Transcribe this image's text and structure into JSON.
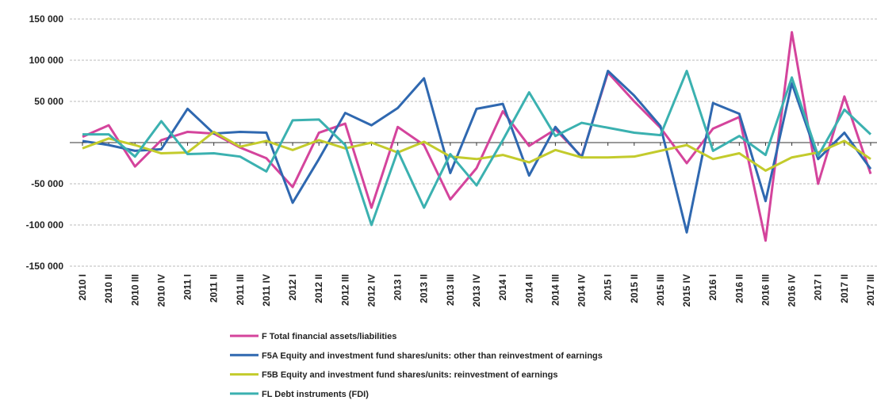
{
  "chart_data": {
    "type": "line",
    "categories": [
      "2010 I",
      "2010 II",
      "2010 III",
      "2010 IV",
      "2011 I",
      "2011 II",
      "2011 III",
      "2011 IV",
      "2012 I",
      "2012 II",
      "2012 III",
      "2012 IV",
      "2013 I",
      "2013 II",
      "2013 III",
      "2013 IV",
      "2014 I",
      "2014 II",
      "2014 III",
      "2014 IV",
      "2015 I",
      "2015 II",
      "2015 III",
      "2015 IV",
      "2016 I",
      "2016 II",
      "2016 III",
      "2016 IV",
      "2017 I",
      "2017 II",
      "2017 III"
    ],
    "series": [
      {
        "name": "F Total financial assets/liabilities",
        "color": "#d4449c",
        "values": [
          7000,
          21000,
          -29000,
          3000,
          13000,
          11000,
          -6000,
          -19000,
          -54000,
          12000,
          23000,
          -79000,
          19000,
          -3000,
          -69000,
          -31000,
          38000,
          -4000,
          16000,
          -17000,
          85000,
          50000,
          18000,
          -25000,
          17000,
          31000,
          -119000,
          134000,
          -50000,
          56000,
          -38000
        ]
      },
      {
        "name": "F5A Equity and investment fund shares/units: other than reinvestment of earnings",
        "color": "#2f68b0",
        "values": [
          2000,
          -3000,
          -10000,
          -8000,
          41000,
          11000,
          13000,
          12000,
          -73000,
          -20000,
          36000,
          21000,
          42000,
          78000,
          -37000,
          41000,
          47000,
          -40000,
          19000,
          -18000,
          87000,
          57000,
          20000,
          -109000,
          48000,
          35000,
          -71000,
          72000,
          -20000,
          12000,
          -32000
        ]
      },
      {
        "name": "F5B Equity and investment fund shares/units: reinvestment of earnings",
        "color": "#c3cb2c",
        "values": [
          -7000,
          5000,
          -3000,
          -13000,
          -12000,
          13000,
          -5000,
          2000,
          -9000,
          3000,
          -7000,
          0,
          -12000,
          1000,
          -17000,
          -20000,
          -15000,
          -24000,
          -9000,
          -18000,
          -18000,
          -17000,
          -10000,
          -3000,
          -20000,
          -13000,
          -34000,
          -18000,
          -12000,
          2000,
          -20000
        ]
      },
      {
        "name": "FL Debt instruments (FDI)",
        "color": "#3bb1b0",
        "values": [
          10000,
          10000,
          -17000,
          26000,
          -14000,
          -13000,
          -17000,
          -35000,
          27000,
          28000,
          -3000,
          -100000,
          -10000,
          -79000,
          -14000,
          -52000,
          3000,
          61000,
          8000,
          24000,
          18000,
          12000,
          9000,
          87000,
          -10000,
          8000,
          -15000,
          79000,
          -16000,
          40000,
          10000
        ]
      }
    ],
    "ylim": [
      -150000,
      150000
    ],
    "yticks": [
      {
        "value": -150000,
        "label": "-150 000"
      },
      {
        "value": -100000,
        "label": "-100 000"
      },
      {
        "value": -50000,
        "label": "-50 000"
      },
      {
        "value": 50000,
        "label": "50 000"
      },
      {
        "value": 100000,
        "label": "100 000"
      },
      {
        "value": 150000,
        "label": "150 000"
      }
    ],
    "grid": true
  }
}
